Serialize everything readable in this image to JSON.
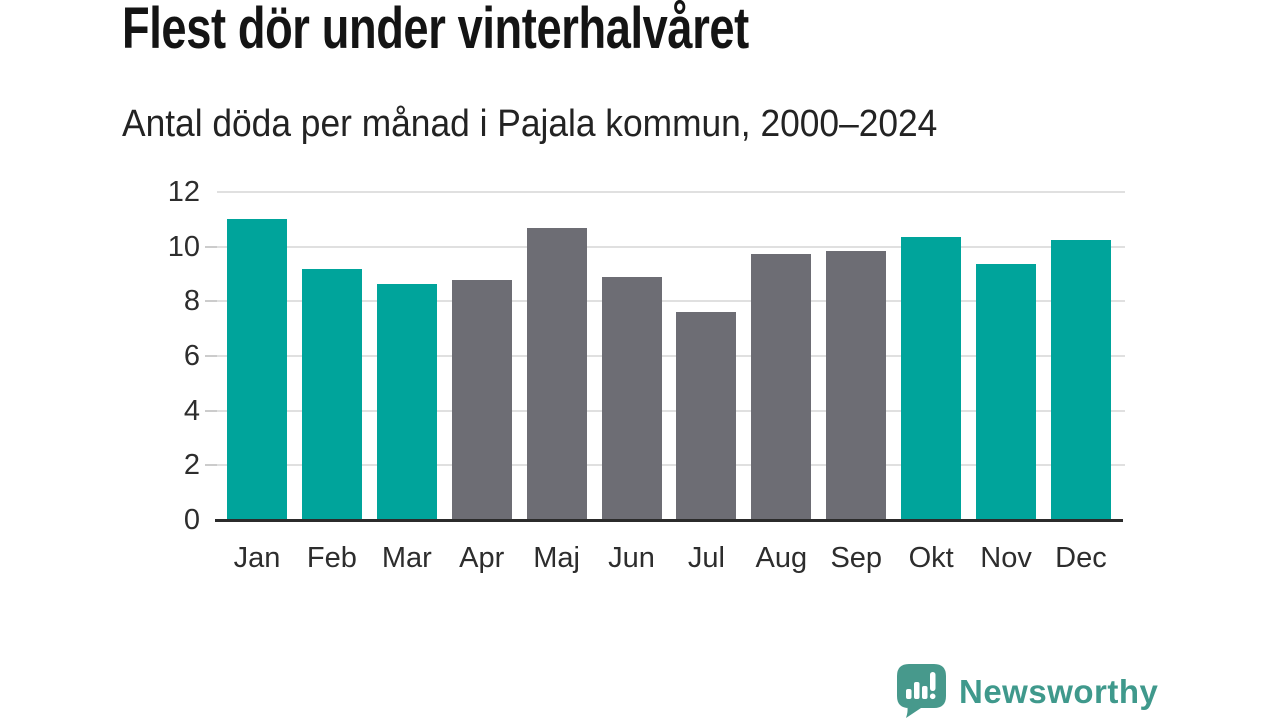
{
  "header": {
    "title": "Flest dör under vinterhalvåret",
    "subtitle": "Antal döda per månad i Pajala kommun, 2000–2024"
  },
  "chart_data": {
    "type": "bar",
    "title": "Flest dör under vinterhalvåret",
    "subtitle": "Antal döda per månad i Pajala kommun, 2000–2024",
    "categories": [
      "Jan",
      "Feb",
      "Mar",
      "Apr",
      "Maj",
      "Jun",
      "Jul",
      "Aug",
      "Sep",
      "Okt",
      "Nov",
      "Dec"
    ],
    "values": [
      11.0,
      9.2,
      8.65,
      8.8,
      10.7,
      8.9,
      7.6,
      9.75,
      9.85,
      10.35,
      9.35,
      10.25
    ],
    "bar_colors": [
      "teal",
      "teal",
      "teal",
      "gray",
      "gray",
      "gray",
      "gray",
      "gray",
      "gray",
      "teal",
      "teal",
      "teal"
    ],
    "xlabel": "",
    "ylabel": "",
    "ylim": [
      0,
      12
    ],
    "yticks": [
      0,
      2,
      4,
      6,
      8,
      10,
      12
    ],
    "grid": true,
    "legend": "none",
    "colors": {
      "teal": "#00a49b",
      "gray": "#6d6d74",
      "gridline": "#e0e0e0",
      "tick_dash": "#cccccc",
      "axis": "#2b2b2b",
      "label": "#2d2d2d"
    }
  },
  "footer": {
    "brand": "Newsworthy",
    "brand_color": "#3f998c",
    "logo_icon": "bar-chart-speech-bubble-icon"
  }
}
